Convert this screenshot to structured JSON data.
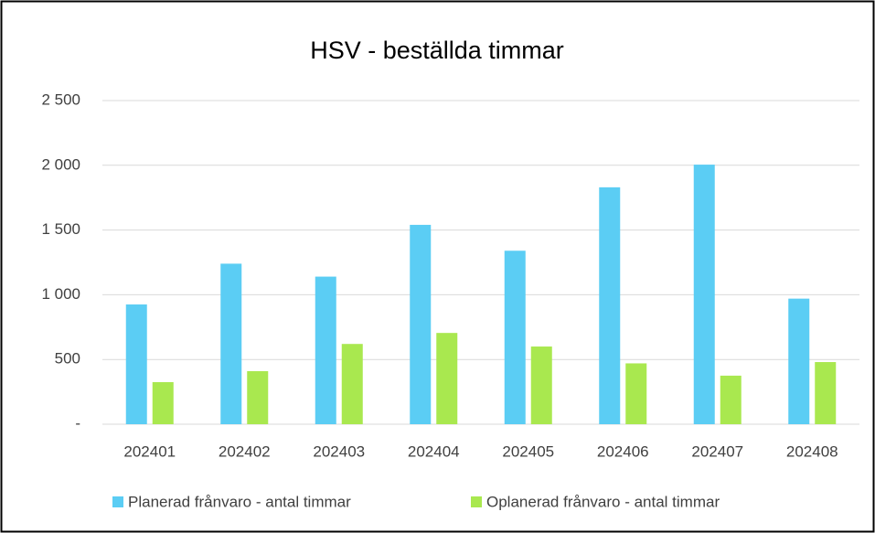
{
  "chart_data": {
    "type": "bar",
    "title": "HSV - beställda timmar",
    "categories": [
      "202401",
      "202402",
      "202403",
      "202404",
      "202405",
      "202406",
      "202407",
      "202408"
    ],
    "series": [
      {
        "name": "Planerad frånvaro - antal timmar",
        "color": "#5bcdf4",
        "values": [
          925,
          1240,
          1140,
          1540,
          1340,
          1830,
          2005,
          970
        ]
      },
      {
        "name": "Oplanerad frånvaro - antal timmar",
        "color": "#a9e84f",
        "values": [
          325,
          410,
          620,
          705,
          600,
          470,
          375,
          480
        ]
      }
    ],
    "ylim": [
      0,
      2500
    ],
    "yticks": [
      {
        "value": 0,
        "label": "-"
      },
      500,
      {
        "value": 1000,
        "label": "1 000"
      },
      {
        "value": 1500,
        "label": "1 500"
      },
      {
        "value": 2000,
        "label": "2 000"
      },
      {
        "value": 2500,
        "label": "2 500"
      }
    ],
    "grid": true,
    "legend": "bottom"
  }
}
